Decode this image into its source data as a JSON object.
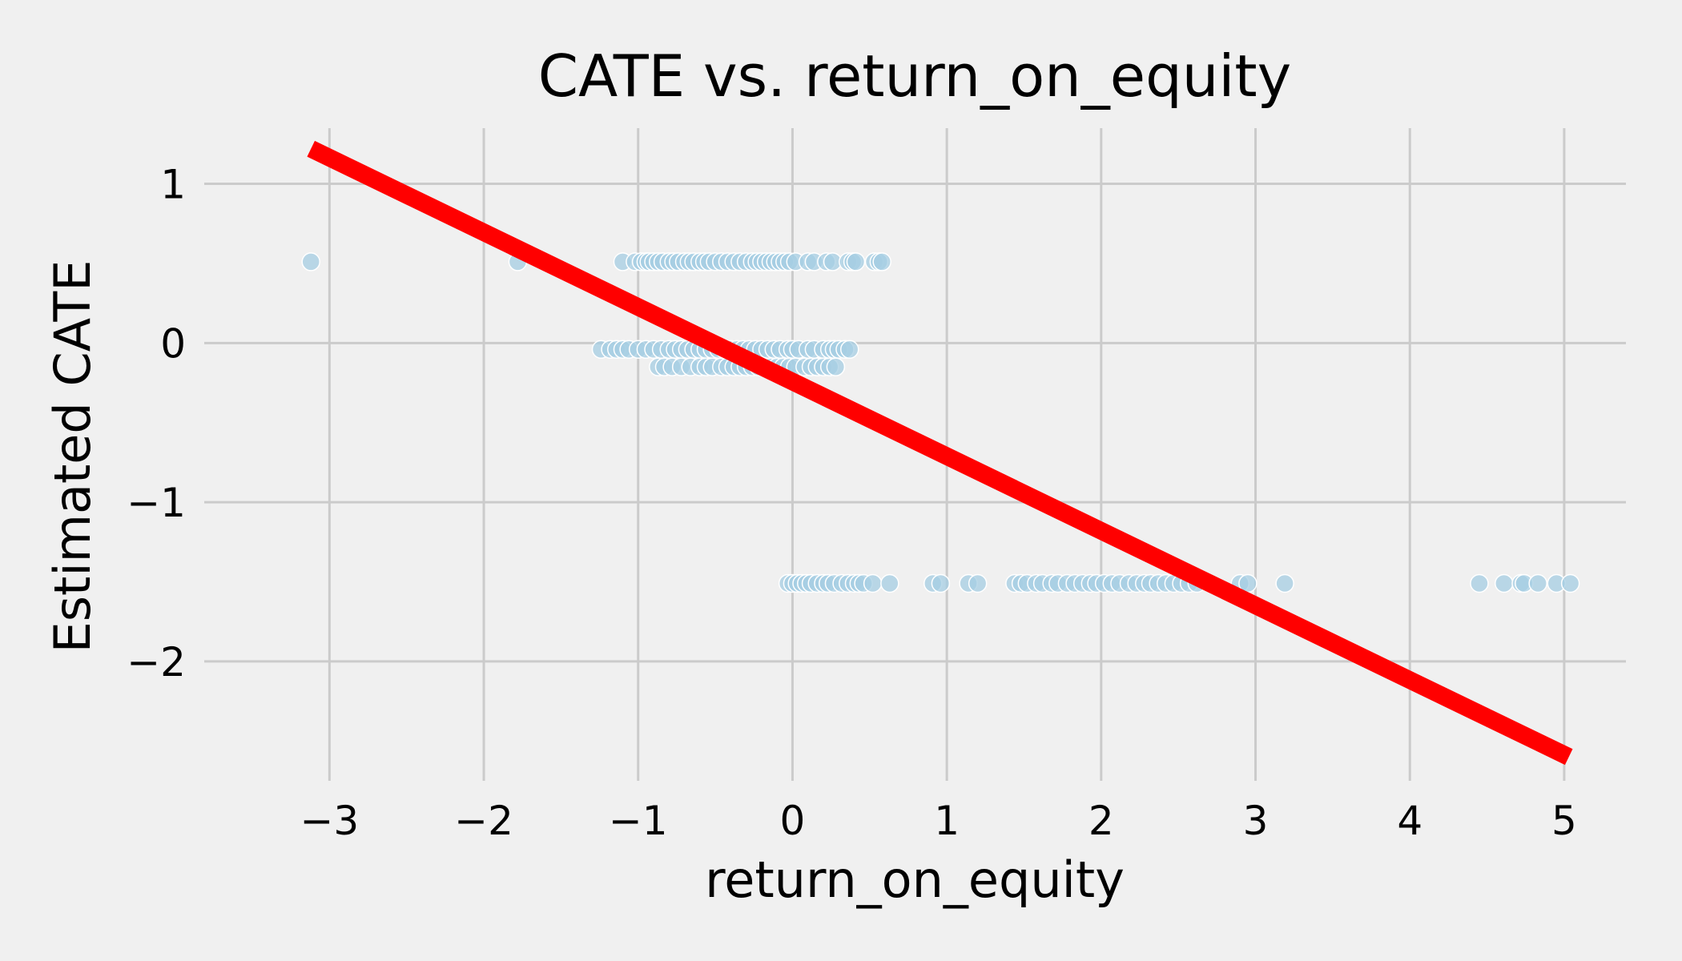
{
  "chart_data": {
    "type": "scatter",
    "title": "CATE vs. return_on_equity",
    "xlabel": "return_on_equity",
    "ylabel": "Estimated CATE",
    "xlim": [
      -3.5,
      5.4
    ],
    "ylim": [
      -2.75,
      1.4
    ],
    "x_ticks": [
      -3,
      -2,
      -1,
      0,
      1,
      2,
      3,
      4,
      5
    ],
    "y_ticks": [
      -2,
      -1,
      0,
      1
    ],
    "x_tick_labels": [
      "−3",
      "−2",
      "−1",
      "0",
      "1",
      "2",
      "3",
      "4",
      "5"
    ],
    "y_tick_labels": [
      "−2",
      "−1",
      "0",
      "1"
    ],
    "grid": true,
    "legend": "none",
    "colors": {
      "background": "#f0f0f0",
      "grid": "#cbcbcb",
      "points": "#a6cee3",
      "point_edge": "#ffffff",
      "fit_line": "#ff0000"
    },
    "series": [
      {
        "type": "scatter",
        "points": [
          [
            -3.12,
            0.51
          ],
          [
            -1.78,
            0.51
          ],
          [
            -1.1,
            0.51
          ],
          [
            -1.02,
            0.51
          ],
          [
            -0.98,
            0.51
          ],
          [
            -0.95,
            0.51
          ],
          [
            -0.93,
            0.51
          ],
          [
            -0.9,
            0.51
          ],
          [
            -0.87,
            0.51
          ],
          [
            -0.84,
            0.51
          ],
          [
            -0.8,
            0.51
          ],
          [
            -0.77,
            0.51
          ],
          [
            -0.74,
            0.51
          ],
          [
            -0.7,
            0.51
          ],
          [
            -0.67,
            0.51
          ],
          [
            -0.64,
            0.51
          ],
          [
            -0.6,
            0.51
          ],
          [
            -0.57,
            0.51
          ],
          [
            -0.54,
            0.51
          ],
          [
            -0.5,
            0.51
          ],
          [
            -0.46,
            0.51
          ],
          [
            -0.42,
            0.51
          ],
          [
            -0.38,
            0.51
          ],
          [
            -0.34,
            0.51
          ],
          [
            -0.3,
            0.51
          ],
          [
            -0.26,
            0.51
          ],
          [
            -0.23,
            0.51
          ],
          [
            -0.2,
            0.51
          ],
          [
            -0.17,
            0.51
          ],
          [
            -0.14,
            0.51
          ],
          [
            -0.11,
            0.51
          ],
          [
            -0.08,
            0.51
          ],
          [
            -0.05,
            0.51
          ],
          [
            -0.02,
            0.51
          ],
          [
            0.02,
            0.51
          ],
          [
            0.1,
            0.51
          ],
          [
            0.14,
            0.51
          ],
          [
            0.22,
            0.51
          ],
          [
            0.26,
            0.51
          ],
          [
            0.36,
            0.51
          ],
          [
            0.39,
            0.51
          ],
          [
            0.41,
            0.51
          ],
          [
            0.53,
            0.51
          ],
          [
            0.56,
            0.51
          ],
          [
            0.58,
            0.51
          ],
          [
            -1.24,
            -0.04
          ],
          [
            -1.18,
            -0.04
          ],
          [
            -1.14,
            -0.04
          ],
          [
            -1.1,
            -0.04
          ],
          [
            -1.06,
            -0.04
          ],
          [
            -1.0,
            -0.04
          ],
          [
            -0.95,
            -0.04
          ],
          [
            -0.9,
            -0.04
          ],
          [
            -0.85,
            -0.04
          ],
          [
            -0.8,
            -0.04
          ],
          [
            -0.76,
            -0.04
          ],
          [
            -0.72,
            -0.04
          ],
          [
            -0.68,
            -0.04
          ],
          [
            -0.64,
            -0.04
          ],
          [
            -0.6,
            -0.04
          ],
          [
            -0.56,
            -0.04
          ],
          [
            -0.52,
            -0.04
          ],
          [
            -0.48,
            -0.04
          ],
          [
            -0.44,
            -0.04
          ],
          [
            -0.4,
            -0.04
          ],
          [
            -0.36,
            -0.04
          ],
          [
            -0.32,
            -0.04
          ],
          [
            -0.28,
            -0.04
          ],
          [
            -0.24,
            -0.04
          ],
          [
            -0.2,
            -0.04
          ],
          [
            -0.16,
            -0.04
          ],
          [
            -0.12,
            -0.04
          ],
          [
            -0.08,
            -0.04
          ],
          [
            -0.03,
            -0.04
          ],
          [
            0.0,
            -0.04
          ],
          [
            0.04,
            -0.04
          ],
          [
            0.1,
            -0.04
          ],
          [
            0.14,
            -0.04
          ],
          [
            0.2,
            -0.04
          ],
          [
            0.24,
            -0.04
          ],
          [
            0.27,
            -0.04
          ],
          [
            0.3,
            -0.04
          ],
          [
            0.34,
            -0.04
          ],
          [
            0.37,
            -0.04
          ],
          [
            -0.87,
            -0.15
          ],
          [
            -0.83,
            -0.15
          ],
          [
            -0.78,
            -0.15
          ],
          [
            -0.72,
            -0.15
          ],
          [
            -0.66,
            -0.15
          ],
          [
            -0.6,
            -0.15
          ],
          [
            -0.56,
            -0.15
          ],
          [
            -0.52,
            -0.15
          ],
          [
            -0.46,
            -0.15
          ],
          [
            -0.42,
            -0.15
          ],
          [
            -0.38,
            -0.15
          ],
          [
            -0.34,
            -0.15
          ],
          [
            -0.3,
            -0.15
          ],
          [
            -0.26,
            -0.15
          ],
          [
            -0.22,
            -0.15
          ],
          [
            -0.18,
            -0.15
          ],
          [
            -0.14,
            -0.15
          ],
          [
            -0.1,
            -0.15
          ],
          [
            -0.06,
            -0.15
          ],
          [
            -0.02,
            -0.15
          ],
          [
            0.02,
            -0.15
          ],
          [
            0.08,
            -0.15
          ],
          [
            0.12,
            -0.15
          ],
          [
            0.16,
            -0.15
          ],
          [
            0.2,
            -0.15
          ],
          [
            0.24,
            -0.15
          ],
          [
            0.28,
            -0.15
          ],
          [
            -0.03,
            -1.51
          ],
          [
            0.0,
            -1.51
          ],
          [
            0.03,
            -1.51
          ],
          [
            0.06,
            -1.51
          ],
          [
            0.09,
            -1.51
          ],
          [
            0.12,
            -1.51
          ],
          [
            0.16,
            -1.51
          ],
          [
            0.2,
            -1.51
          ],
          [
            0.23,
            -1.51
          ],
          [
            0.27,
            -1.51
          ],
          [
            0.32,
            -1.51
          ],
          [
            0.36,
            -1.51
          ],
          [
            0.4,
            -1.51
          ],
          [
            0.43,
            -1.51
          ],
          [
            0.46,
            -1.51
          ],
          [
            0.52,
            -1.51
          ],
          [
            0.63,
            -1.51
          ],
          [
            0.91,
            -1.51
          ],
          [
            0.96,
            -1.51
          ],
          [
            1.14,
            -1.51
          ],
          [
            1.2,
            -1.51
          ],
          [
            1.44,
            -1.51
          ],
          [
            1.48,
            -1.51
          ],
          [
            1.52,
            -1.51
          ],
          [
            1.58,
            -1.51
          ],
          [
            1.62,
            -1.51
          ],
          [
            1.68,
            -1.51
          ],
          [
            1.72,
            -1.51
          ],
          [
            1.78,
            -1.51
          ],
          [
            1.83,
            -1.51
          ],
          [
            1.88,
            -1.51
          ],
          [
            1.93,
            -1.51
          ],
          [
            1.97,
            -1.51
          ],
          [
            2.02,
            -1.51
          ],
          [
            2.07,
            -1.51
          ],
          [
            2.12,
            -1.51
          ],
          [
            2.18,
            -1.51
          ],
          [
            2.23,
            -1.51
          ],
          [
            2.28,
            -1.51
          ],
          [
            2.32,
            -1.51
          ],
          [
            2.37,
            -1.51
          ],
          [
            2.42,
            -1.51
          ],
          [
            2.47,
            -1.51
          ],
          [
            2.52,
            -1.51
          ],
          [
            2.57,
            -1.51
          ],
          [
            2.62,
            -1.51
          ],
          [
            2.9,
            -1.51
          ],
          [
            2.95,
            -1.51
          ],
          [
            3.19,
            -1.51
          ],
          [
            4.45,
            -1.51
          ],
          [
            4.61,
            -1.51
          ],
          [
            4.72,
            -1.51
          ],
          [
            4.74,
            -1.51
          ],
          [
            4.83,
            -1.51
          ],
          [
            4.95,
            -1.51
          ],
          [
            5.04,
            -1.51
          ]
        ]
      },
      {
        "type": "line",
        "x": [
          -3.12,
          5.03
        ],
        "y": [
          1.22,
          -2.6
        ]
      }
    ]
  }
}
